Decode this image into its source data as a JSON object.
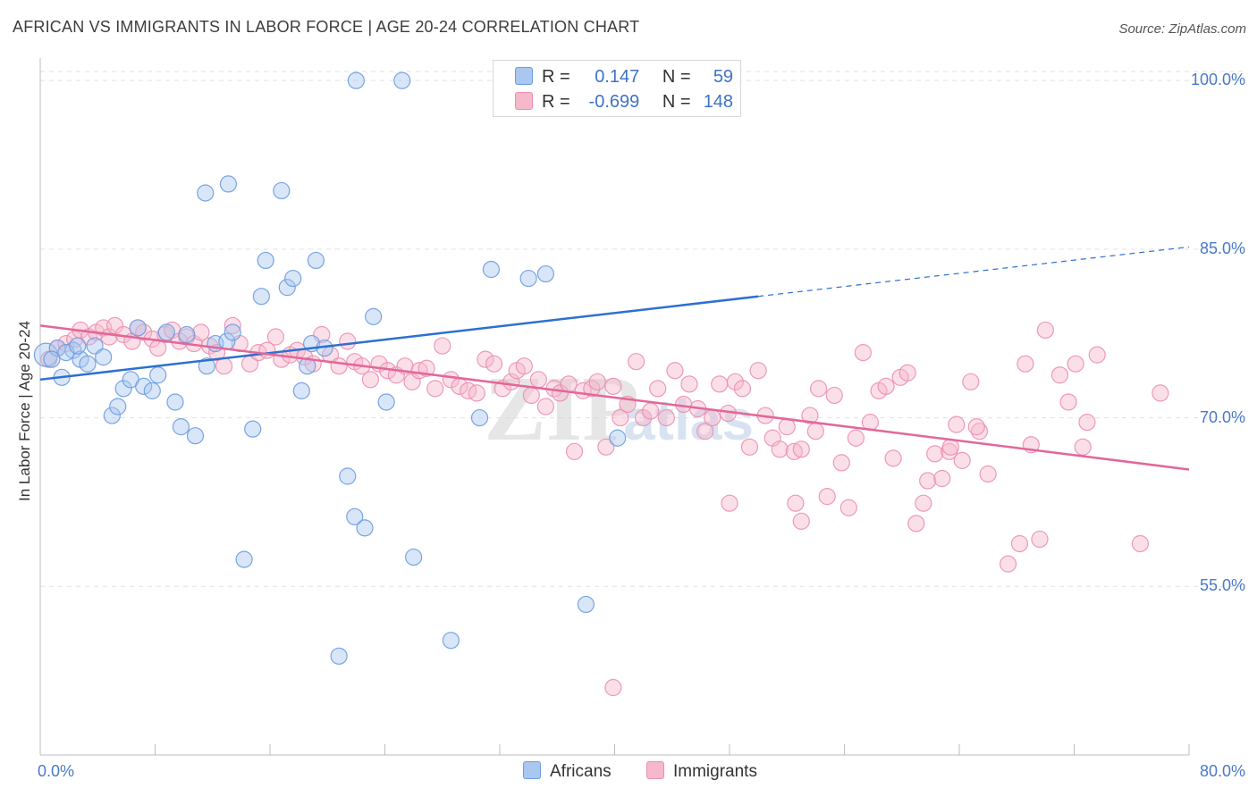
{
  "header": {
    "title": "AFRICAN VS IMMIGRANTS IN LABOR FORCE | AGE 20-24 CORRELATION CHART",
    "source": "Source: ZipAtlas.com"
  },
  "watermark": {
    "zip": "ZIP",
    "atlas": "atlas"
  },
  "legend": {
    "r_label": "R =",
    "n_label": "N =",
    "items": [
      {
        "swatch_color": "#a9c7f0",
        "r_value": "0.147",
        "n_value": "59"
      },
      {
        "swatch_color": "#f6b8cb",
        "r_value": "-0.699",
        "n_value": "148"
      }
    ]
  },
  "bottom_legend": [
    {
      "label": "Africans",
      "swatch_color": "#a9c7f0"
    },
    {
      "label": "Immigrants",
      "swatch_color": "#f6b8cb"
    }
  ],
  "chart_data": {
    "type": "scatter",
    "ylabel": "In Labor Force | Age 20-24",
    "xlim": [
      0,
      80
    ],
    "ylim": [
      40,
      102
    ],
    "x_tick_labels": [
      "0.0%",
      "80.0%"
    ],
    "y_ticks": [
      55,
      70,
      85,
      100
    ],
    "y_tick_labels": [
      "55.0%",
      "70.0%",
      "85.0%",
      "100.0%"
    ],
    "grid": true,
    "colors": {
      "africans": "#6b9be0",
      "immigrants": "#ec8fae",
      "africans_line": "#2e6fd1",
      "immigrants_line": "#e2679a"
    },
    "series": [
      {
        "name": "Africans",
        "trend": {
          "x0": 0.0,
          "y0": 73.4,
          "x1": 50.0,
          "y1": 80.8,
          "dashed_to_x": 80.0,
          "dashed_to_y": 85.2
        },
        "points": [
          [
            0.4,
            75.6
          ],
          [
            1.2,
            76.2
          ],
          [
            1.5,
            73.6
          ],
          [
            2.3,
            76.0
          ],
          [
            2.8,
            75.2
          ],
          [
            3.3,
            74.8
          ],
          [
            3.8,
            76.4
          ],
          [
            4.4,
            75.4
          ],
          [
            5.0,
            70.2
          ],
          [
            5.4,
            71.0
          ],
          [
            5.8,
            72.6
          ],
          [
            6.3,
            73.4
          ],
          [
            6.8,
            78.0
          ],
          [
            7.2,
            72.8
          ],
          [
            7.8,
            72.4
          ],
          [
            8.2,
            73.8
          ],
          [
            8.8,
            77.6
          ],
          [
            9.4,
            71.4
          ],
          [
            9.8,
            69.2
          ],
          [
            10.2,
            77.4
          ],
          [
            10.8,
            68.4
          ],
          [
            11.6,
            74.6
          ],
          [
            12.2,
            76.6
          ],
          [
            13.0,
            76.8
          ],
          [
            13.4,
            77.6
          ],
          [
            14.2,
            57.4
          ],
          [
            14.8,
            69.0
          ],
          [
            15.4,
            80.8
          ],
          [
            11.5,
            90.0
          ],
          [
            13.1,
            90.8
          ],
          [
            15.7,
            84.0
          ],
          [
            16.8,
            90.2
          ],
          [
            17.2,
            81.6
          ],
          [
            17.6,
            82.4
          ],
          [
            18.2,
            72.4
          ],
          [
            18.6,
            74.6
          ],
          [
            18.9,
            76.6
          ],
          [
            19.2,
            84.0
          ],
          [
            19.8,
            76.2
          ],
          [
            20.8,
            48.8
          ],
          [
            21.4,
            64.8
          ],
          [
            21.9,
            61.2
          ],
          [
            22.6,
            60.2
          ],
          [
            23.2,
            79.0
          ],
          [
            24.1,
            71.4
          ],
          [
            26.0,
            57.6
          ],
          [
            28.6,
            50.2
          ],
          [
            30.6,
            70.0
          ],
          [
            31.4,
            83.2
          ],
          [
            34.0,
            82.4
          ],
          [
            35.2,
            82.8
          ],
          [
            38.0,
            53.4
          ],
          [
            40.2,
            68.2
          ],
          [
            22.0,
            100.0
          ],
          [
            25.2,
            100.0
          ],
          [
            43.4,
            100.0
          ],
          [
            0.8,
            75.2
          ],
          [
            1.8,
            75.8
          ],
          [
            2.6,
            76.4
          ]
        ]
      },
      {
        "name": "Immigrants",
        "trend": {
          "x0": 0.0,
          "y0": 78.2,
          "x1": 80.0,
          "y1": 65.4
        },
        "points": [
          [
            0.6,
            75.2
          ],
          [
            1.2,
            76.2
          ],
          [
            1.8,
            76.6
          ],
          [
            2.4,
            77.0
          ],
          [
            2.8,
            77.8
          ],
          [
            3.4,
            77.2
          ],
          [
            3.9,
            77.6
          ],
          [
            4.4,
            78.0
          ],
          [
            4.8,
            77.2
          ],
          [
            5.2,
            78.2
          ],
          [
            5.8,
            77.4
          ],
          [
            6.4,
            76.8
          ],
          [
            6.8,
            78.0
          ],
          [
            7.2,
            77.6
          ],
          [
            7.8,
            77.0
          ],
          [
            8.2,
            76.2
          ],
          [
            8.7,
            77.4
          ],
          [
            9.2,
            77.8
          ],
          [
            9.7,
            76.8
          ],
          [
            10.2,
            77.2
          ],
          [
            10.7,
            76.6
          ],
          [
            11.2,
            77.6
          ],
          [
            11.8,
            76.4
          ],
          [
            12.3,
            75.8
          ],
          [
            12.8,
            74.6
          ],
          [
            13.4,
            78.2
          ],
          [
            13.9,
            76.6
          ],
          [
            14.6,
            74.8
          ],
          [
            15.2,
            75.8
          ],
          [
            15.8,
            76.0
          ],
          [
            16.4,
            77.2
          ],
          [
            16.8,
            75.2
          ],
          [
            17.4,
            75.6
          ],
          [
            17.9,
            76.0
          ],
          [
            18.4,
            75.4
          ],
          [
            19.0,
            74.8
          ],
          [
            19.6,
            77.4
          ],
          [
            20.2,
            75.6
          ],
          [
            20.8,
            74.6
          ],
          [
            21.4,
            76.8
          ],
          [
            21.9,
            75.0
          ],
          [
            22.4,
            74.6
          ],
          [
            23.0,
            73.4
          ],
          [
            23.6,
            74.8
          ],
          [
            24.2,
            74.2
          ],
          [
            24.8,
            73.8
          ],
          [
            25.4,
            74.6
          ],
          [
            25.9,
            73.2
          ],
          [
            26.4,
            74.2
          ],
          [
            26.9,
            74.4
          ],
          [
            27.5,
            72.6
          ],
          [
            28.0,
            76.4
          ],
          [
            28.6,
            73.4
          ],
          [
            29.2,
            72.8
          ],
          [
            29.8,
            72.4
          ],
          [
            30.4,
            72.2
          ],
          [
            31.0,
            75.2
          ],
          [
            31.6,
            74.8
          ],
          [
            32.2,
            72.6
          ],
          [
            32.8,
            73.2
          ],
          [
            33.2,
            74.2
          ],
          [
            33.7,
            74.6
          ],
          [
            34.2,
            72.0
          ],
          [
            34.7,
            73.4
          ],
          [
            35.2,
            71.0
          ],
          [
            35.8,
            72.6
          ],
          [
            36.2,
            72.2
          ],
          [
            36.8,
            73.0
          ],
          [
            37.2,
            67.0
          ],
          [
            37.8,
            72.4
          ],
          [
            38.4,
            72.6
          ],
          [
            38.8,
            73.2
          ],
          [
            39.4,
            67.4
          ],
          [
            39.9,
            72.8
          ],
          [
            40.4,
            70.0
          ],
          [
            40.9,
            71.2
          ],
          [
            41.5,
            75.0
          ],
          [
            42.0,
            70.0
          ],
          [
            42.5,
            70.6
          ],
          [
            43.0,
            72.6
          ],
          [
            43.6,
            70.0
          ],
          [
            44.2,
            74.2
          ],
          [
            44.8,
            71.2
          ],
          [
            45.2,
            73.0
          ],
          [
            45.8,
            70.8
          ],
          [
            46.3,
            68.8
          ],
          [
            46.8,
            70.0
          ],
          [
            47.3,
            73.0
          ],
          [
            47.9,
            70.4
          ],
          [
            48.4,
            73.2
          ],
          [
            48.9,
            72.6
          ],
          [
            49.4,
            67.4
          ],
          [
            50.0,
            74.2
          ],
          [
            50.5,
            70.2
          ],
          [
            51.0,
            68.2
          ],
          [
            51.5,
            67.2
          ],
          [
            52.0,
            69.2
          ],
          [
            52.5,
            67.0
          ],
          [
            53.0,
            67.2
          ],
          [
            53.6,
            70.2
          ],
          [
            54.2,
            72.6
          ],
          [
            54.8,
            63.0
          ],
          [
            55.3,
            72.0
          ],
          [
            55.8,
            66.0
          ],
          [
            56.3,
            62.0
          ],
          [
            56.8,
            68.2
          ],
          [
            57.3,
            75.8
          ],
          [
            57.8,
            69.6
          ],
          [
            58.4,
            72.4
          ],
          [
            58.9,
            72.8
          ],
          [
            59.4,
            66.4
          ],
          [
            59.9,
            73.6
          ],
          [
            60.4,
            74.0
          ],
          [
            61.0,
            60.6
          ],
          [
            61.5,
            62.4
          ],
          [
            61.8,
            64.4
          ],
          [
            62.3,
            66.8
          ],
          [
            62.8,
            64.6
          ],
          [
            63.3,
            67.0
          ],
          [
            63.8,
            69.4
          ],
          [
            64.2,
            66.2
          ],
          [
            64.8,
            73.2
          ],
          [
            65.4,
            68.8
          ],
          [
            66.0,
            65.0
          ],
          [
            67.4,
            57.0
          ],
          [
            68.2,
            58.8
          ],
          [
            69.0,
            67.6
          ],
          [
            69.6,
            59.2
          ],
          [
            70.0,
            77.8
          ],
          [
            71.0,
            73.8
          ],
          [
            71.6,
            71.4
          ],
          [
            72.1,
            74.8
          ],
          [
            72.6,
            67.4
          ],
          [
            72.9,
            69.6
          ],
          [
            73.6,
            75.6
          ],
          [
            76.6,
            58.8
          ],
          [
            78.0,
            72.2
          ],
          [
            39.9,
            46.0
          ],
          [
            63.4,
            67.4
          ],
          [
            65.2,
            69.2
          ],
          [
            54.0,
            68.8
          ],
          [
            52.6,
            62.4
          ],
          [
            53.0,
            60.8
          ],
          [
            68.6,
            74.8
          ],
          [
            48.0,
            62.4
          ]
        ]
      }
    ]
  }
}
